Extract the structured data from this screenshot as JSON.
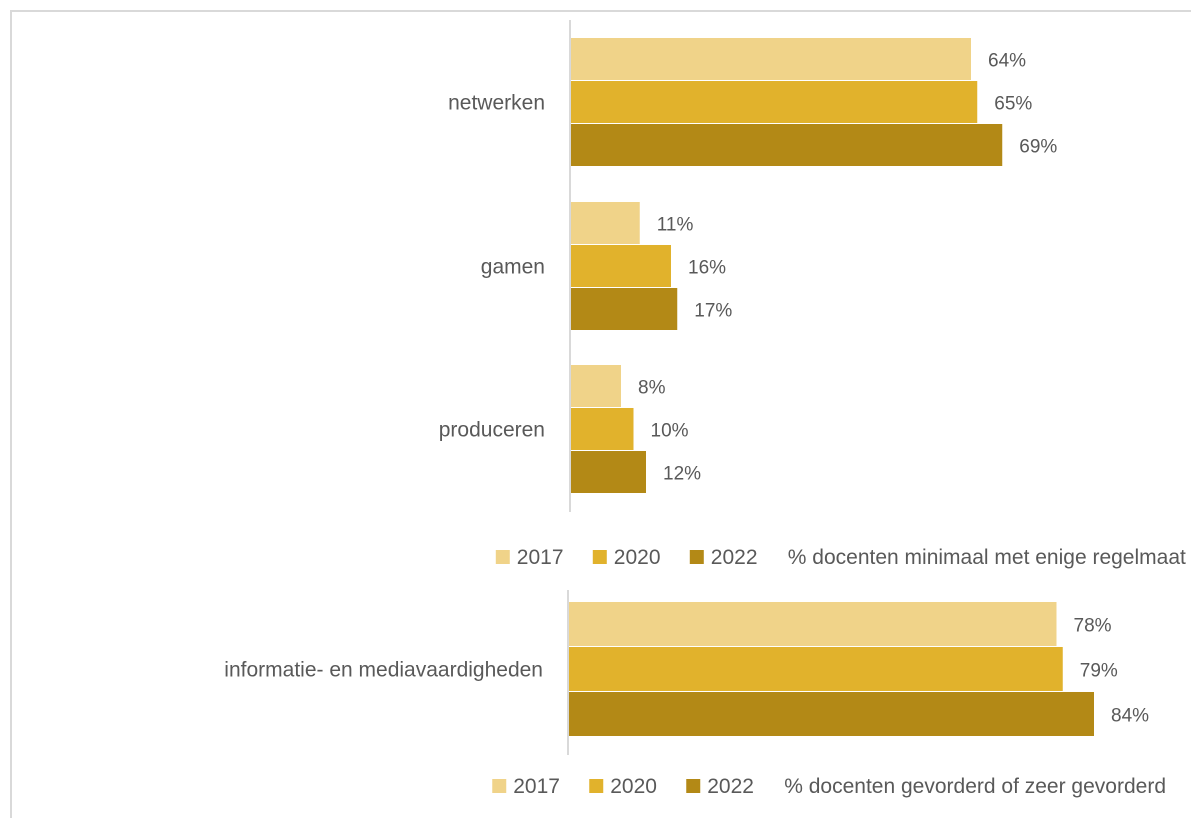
{
  "chart_data": [
    {
      "type": "bar",
      "orientation": "horizontal",
      "categories": [
        "netwerken",
        "gamen",
        "produceren"
      ],
      "series": [
        {
          "name": "2017",
          "values": [
            64,
            11,
            8
          ],
          "color": "#f0d389"
        },
        {
          "name": "2020",
          "values": [
            65,
            16,
            10
          ],
          "color": "#e1b22c"
        },
        {
          "name": "2022",
          "values": [
            69,
            17,
            12
          ],
          "color": "#b38916"
        }
      ],
      "legend_note": "% docenten minimaal met enige regelmaat",
      "value_suffix": "%",
      "xlim": [
        0,
        100
      ],
      "grid": false,
      "legend_position": "bottom-right"
    },
    {
      "type": "bar",
      "orientation": "horizontal",
      "categories": [
        "informatie- en mediavaardigheden"
      ],
      "series": [
        {
          "name": "2017",
          "values": [
            78
          ],
          "color": "#f0d389"
        },
        {
          "name": "2020",
          "values": [
            79
          ],
          "color": "#e1b22c"
        },
        {
          "name": "2022",
          "values": [
            84
          ],
          "color": "#b38916"
        }
      ],
      "legend_note": "% docenten gevorderd of zeer gevorderd",
      "value_suffix": "%",
      "xlim": [
        0,
        100
      ],
      "grid": false,
      "legend_position": "bottom-right"
    }
  ]
}
